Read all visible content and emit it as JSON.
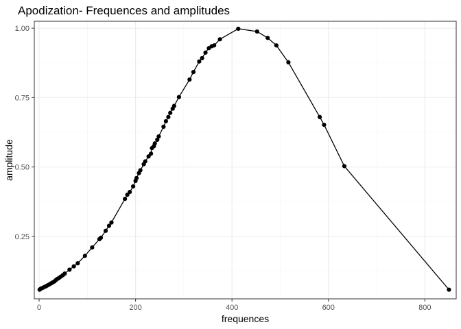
{
  "chart_data": {
    "type": "line",
    "title": "Apodization- Frequences and amplitudes",
    "xlabel": "frequences",
    "ylabel": "amplitude",
    "xlim": [
      -10,
      865
    ],
    "ylim": [
      0.025,
      1.025
    ],
    "x_ticks": [
      0,
      200,
      400,
      600,
      800
    ],
    "x_tick_labels": [
      "0",
      "200",
      "400",
      "600",
      "800"
    ],
    "y_ticks": [
      0.25,
      0.5,
      0.75,
      1.0
    ],
    "y_tick_labels": [
      "0.25",
      "0.50",
      "0.75",
      "1.00"
    ],
    "grid": true,
    "legend": "none",
    "line_color": "#000000",
    "series": [
      {
        "x": [
          1,
          3,
          5,
          8,
          11,
          14,
          17,
          20,
          23,
          26,
          29,
          32,
          35,
          38,
          41,
          45,
          49,
          53,
          63,
          72,
          80,
          95,
          110,
          125,
          128,
          138,
          145,
          150,
          178,
          183,
          188,
          195,
          200,
          202,
          207,
          210,
          217,
          220,
          227,
          232,
          234,
          238,
          240,
          245,
          248,
          258,
          263,
          268,
          272,
          277,
          280,
          290,
          312,
          320,
          332,
          338,
          345,
          352,
          358,
          363,
          375,
          413,
          452,
          474,
          492,
          517,
          582,
          591,
          633,
          850
        ],
        "y": [
          0.058,
          0.061,
          0.063,
          0.065,
          0.068,
          0.07,
          0.073,
          0.076,
          0.079,
          0.082,
          0.085,
          0.088,
          0.093,
          0.097,
          0.1,
          0.105,
          0.11,
          0.116,
          0.13,
          0.142,
          0.153,
          0.18,
          0.21,
          0.24,
          0.245,
          0.27,
          0.288,
          0.3,
          0.385,
          0.4,
          0.41,
          0.43,
          0.45,
          0.46,
          0.478,
          0.488,
          0.51,
          0.52,
          0.538,
          0.548,
          0.568,
          0.575,
          0.585,
          0.598,
          0.61,
          0.645,
          0.665,
          0.68,
          0.695,
          0.71,
          0.72,
          0.752,
          0.815,
          0.842,
          0.88,
          0.892,
          0.912,
          0.928,
          0.935,
          0.938,
          0.96,
          0.998,
          0.988,
          0.965,
          0.938,
          0.877,
          0.68,
          0.652,
          0.503,
          0.058
        ]
      }
    ]
  }
}
